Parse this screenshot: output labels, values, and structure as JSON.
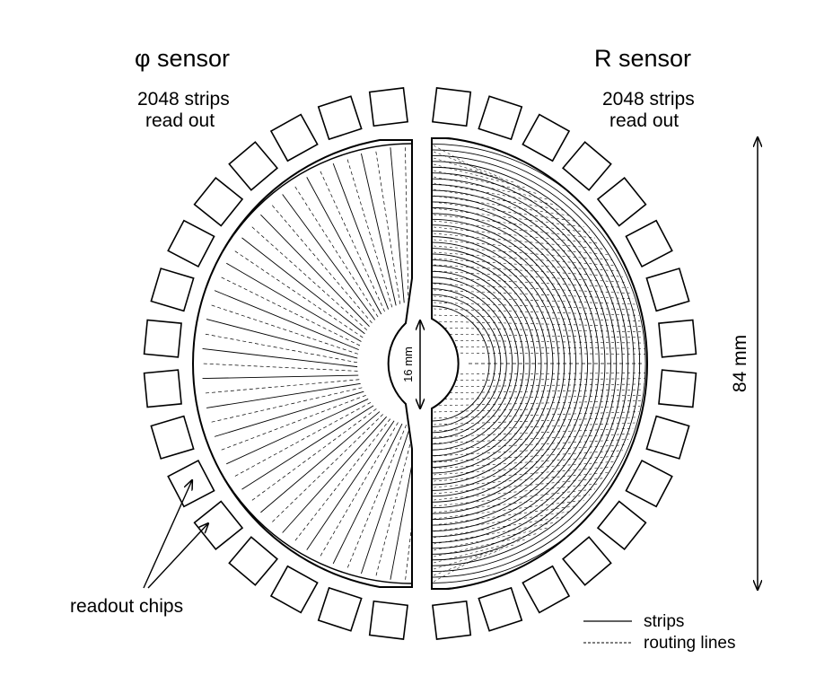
{
  "phi_sensor": {
    "title": "φ sensor",
    "readout_line1": "2048 strips",
    "readout_line2": "read out"
  },
  "r_sensor": {
    "title": "R sensor",
    "readout_line1": "2048 strips",
    "readout_line2": "read out"
  },
  "dimensions": {
    "outer": "84 mm",
    "inner": "16 mm"
  },
  "readout_chips_label": "readout chips",
  "legend": {
    "strips": "strips",
    "routing": "routing lines"
  }
}
